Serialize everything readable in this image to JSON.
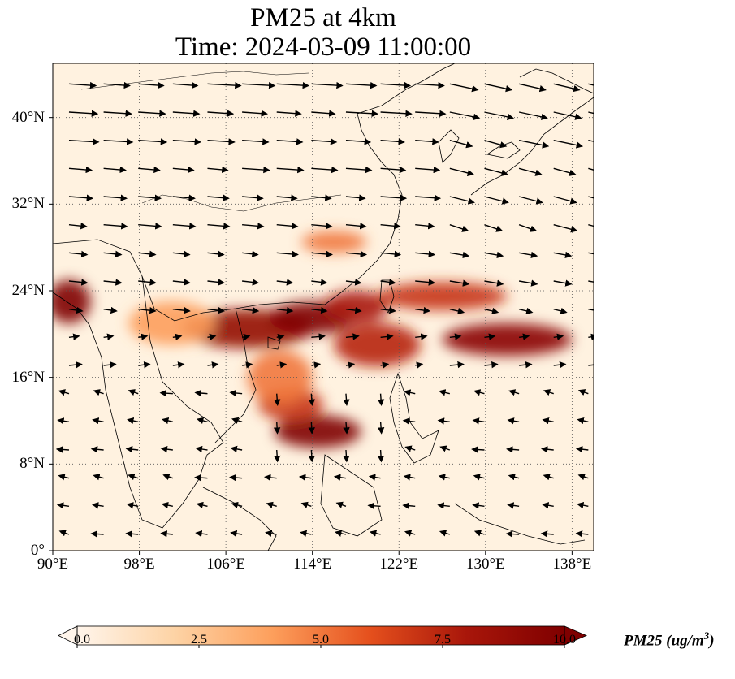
{
  "title_line1": "PM25 at 4km",
  "title_line2": "Time: 2024-03-09 11:00:00",
  "map": {
    "lon_range": [
      90,
      140
    ],
    "lat_range": [
      0,
      45
    ],
    "lat_ticks": [
      {
        "value": 0,
        "label": "0°"
      },
      {
        "value": 8,
        "label": "8°N"
      },
      {
        "value": 16,
        "label": "16°N"
      },
      {
        "value": 24,
        "label": "24°N"
      },
      {
        "value": 32,
        "label": "32°N"
      },
      {
        "value": 40,
        "label": "40°N"
      }
    ],
    "lon_ticks": [
      {
        "value": 90,
        "label": "90°E"
      },
      {
        "value": 98,
        "label": "98°E"
      },
      {
        "value": 106,
        "label": "106°E"
      },
      {
        "value": 114,
        "label": "114°E"
      },
      {
        "value": 122,
        "label": "122°E"
      },
      {
        "value": 130,
        "label": "130°E"
      },
      {
        "value": 138,
        "label": "138°E"
      }
    ],
    "gridlines": "dotted",
    "background_color": "#fff2e0",
    "pollution_plumes": [
      {
        "lon": 108,
        "lat": 20.5,
        "rx": 6,
        "ry": 1.8,
        "value": 9
      },
      {
        "lon": 114,
        "lat": 21.5,
        "rx": 4,
        "ry": 1.5,
        "value": 10
      },
      {
        "lon": 118,
        "lat": 22.5,
        "rx": 3,
        "ry": 1.5,
        "value": 8
      },
      {
        "lon": 120,
        "lat": 19,
        "rx": 4,
        "ry": 2,
        "value": 7.5
      },
      {
        "lon": 114.5,
        "lat": 11,
        "rx": 4,
        "ry": 1.5,
        "value": 10
      },
      {
        "lon": 112,
        "lat": 13.5,
        "rx": 3,
        "ry": 1.5,
        "value": 7
      },
      {
        "lon": 132,
        "lat": 19.5,
        "rx": 6,
        "ry": 1.5,
        "value": 9.5
      },
      {
        "lon": 126,
        "lat": 23.5,
        "rx": 6,
        "ry": 1.3,
        "value": 7
      },
      {
        "lon": 91.5,
        "lat": 23,
        "rx": 2,
        "ry": 2,
        "value": 10
      },
      {
        "lon": 116,
        "lat": 28.5,
        "rx": 3,
        "ry": 1,
        "value": 5
      },
      {
        "lon": 101,
        "lat": 21,
        "rx": 4,
        "ry": 2,
        "value": 4
      },
      {
        "lon": 111,
        "lat": 16,
        "rx": 3,
        "ry": 2.5,
        "value": 5
      }
    ],
    "wind_vectors_note": "wind arrows generally blow eastward in the north and westward in the south"
  },
  "colorbar": {
    "ticks": [
      "0.0",
      "2.5",
      "5.0",
      "7.5",
      "10.0"
    ],
    "label": "PM25 (ug/m$^3$)",
    "label_display": "PM25 (ug/m",
    "label_sup": "3",
    "label_end": ")",
    "colormap": [
      "#fff5eb",
      "#fdd3a5",
      "#fd9f5c",
      "#e5501d",
      "#a8160a",
      "#7f0000"
    ]
  }
}
